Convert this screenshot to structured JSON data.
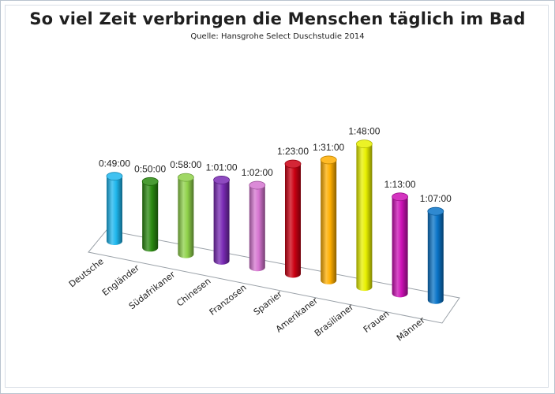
{
  "title": "So viel Zeit verbringen die Menschen täglich im Bad",
  "subtitle": "Quelle: Hansgrohe Select Duschstudie 2014",
  "chart_data": {
    "type": "bar",
    "title": "So viel Zeit verbringen die Menschen täglich im Bad",
    "subtitle": "Quelle: Hansgrohe Select Duschstudie 2014",
    "xlabel": "",
    "ylabel": "",
    "unit": "minutes",
    "categories": [
      "Deutsche",
      "Engländer",
      "Südafrikaner",
      "Chinesen",
      "Franzosen",
      "Spanier",
      "Amerikaner",
      "Brasilianer",
      "Frauen",
      "Männer"
    ],
    "values": [
      49,
      50,
      58,
      61,
      62,
      83,
      91,
      108,
      73,
      67
    ],
    "value_labels": [
      "0:49:00",
      "0:50:00",
      "0:58:00",
      "1:01:00",
      "1:02:00",
      "1:23:00",
      "1:31:00",
      "1:48:00",
      "1:13:00",
      "1:07:00"
    ],
    "colors": [
      "#1fb7ee",
      "#2a8a10",
      "#8fd14a",
      "#7a2ab5",
      "#d575d0",
      "#cc0012",
      "#ffae00",
      "#e8f000",
      "#cc10b5",
      "#0a74c8"
    ],
    "grid": false,
    "legend": "none"
  }
}
